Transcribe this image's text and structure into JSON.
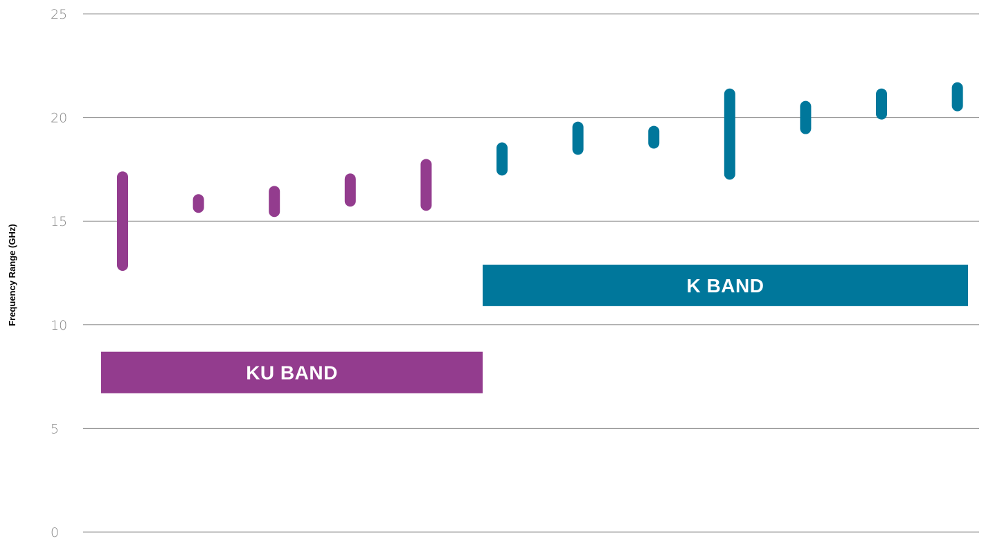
{
  "chart_data": {
    "type": "range-bar",
    "ylabel": "Frequency Range (GHz)",
    "ylim": [
      0,
      25
    ],
    "yticks": [
      "0",
      "5",
      "10",
      "15",
      "20",
      "25"
    ],
    "grid": true,
    "series": [
      {
        "name": "KU BAND",
        "color": "#933c8e",
        "label_range": [
          6.7,
          8.7
        ],
        "ranges": [
          [
            12.6,
            17.4
          ],
          [
            15.4,
            16.3
          ],
          [
            15.2,
            16.7
          ],
          [
            15.7,
            17.3
          ],
          [
            15.5,
            18.0
          ]
        ]
      },
      {
        "name": "K BAND",
        "color": "#00779b",
        "label_range": [
          10.9,
          12.9
        ],
        "ranges": [
          [
            17.2,
            18.8
          ],
          [
            18.2,
            19.8
          ],
          [
            18.5,
            19.6
          ],
          [
            17.0,
            21.4
          ],
          [
            19.2,
            20.8
          ],
          [
            19.9,
            21.4
          ],
          [
            20.3,
            21.7
          ]
        ]
      }
    ]
  }
}
